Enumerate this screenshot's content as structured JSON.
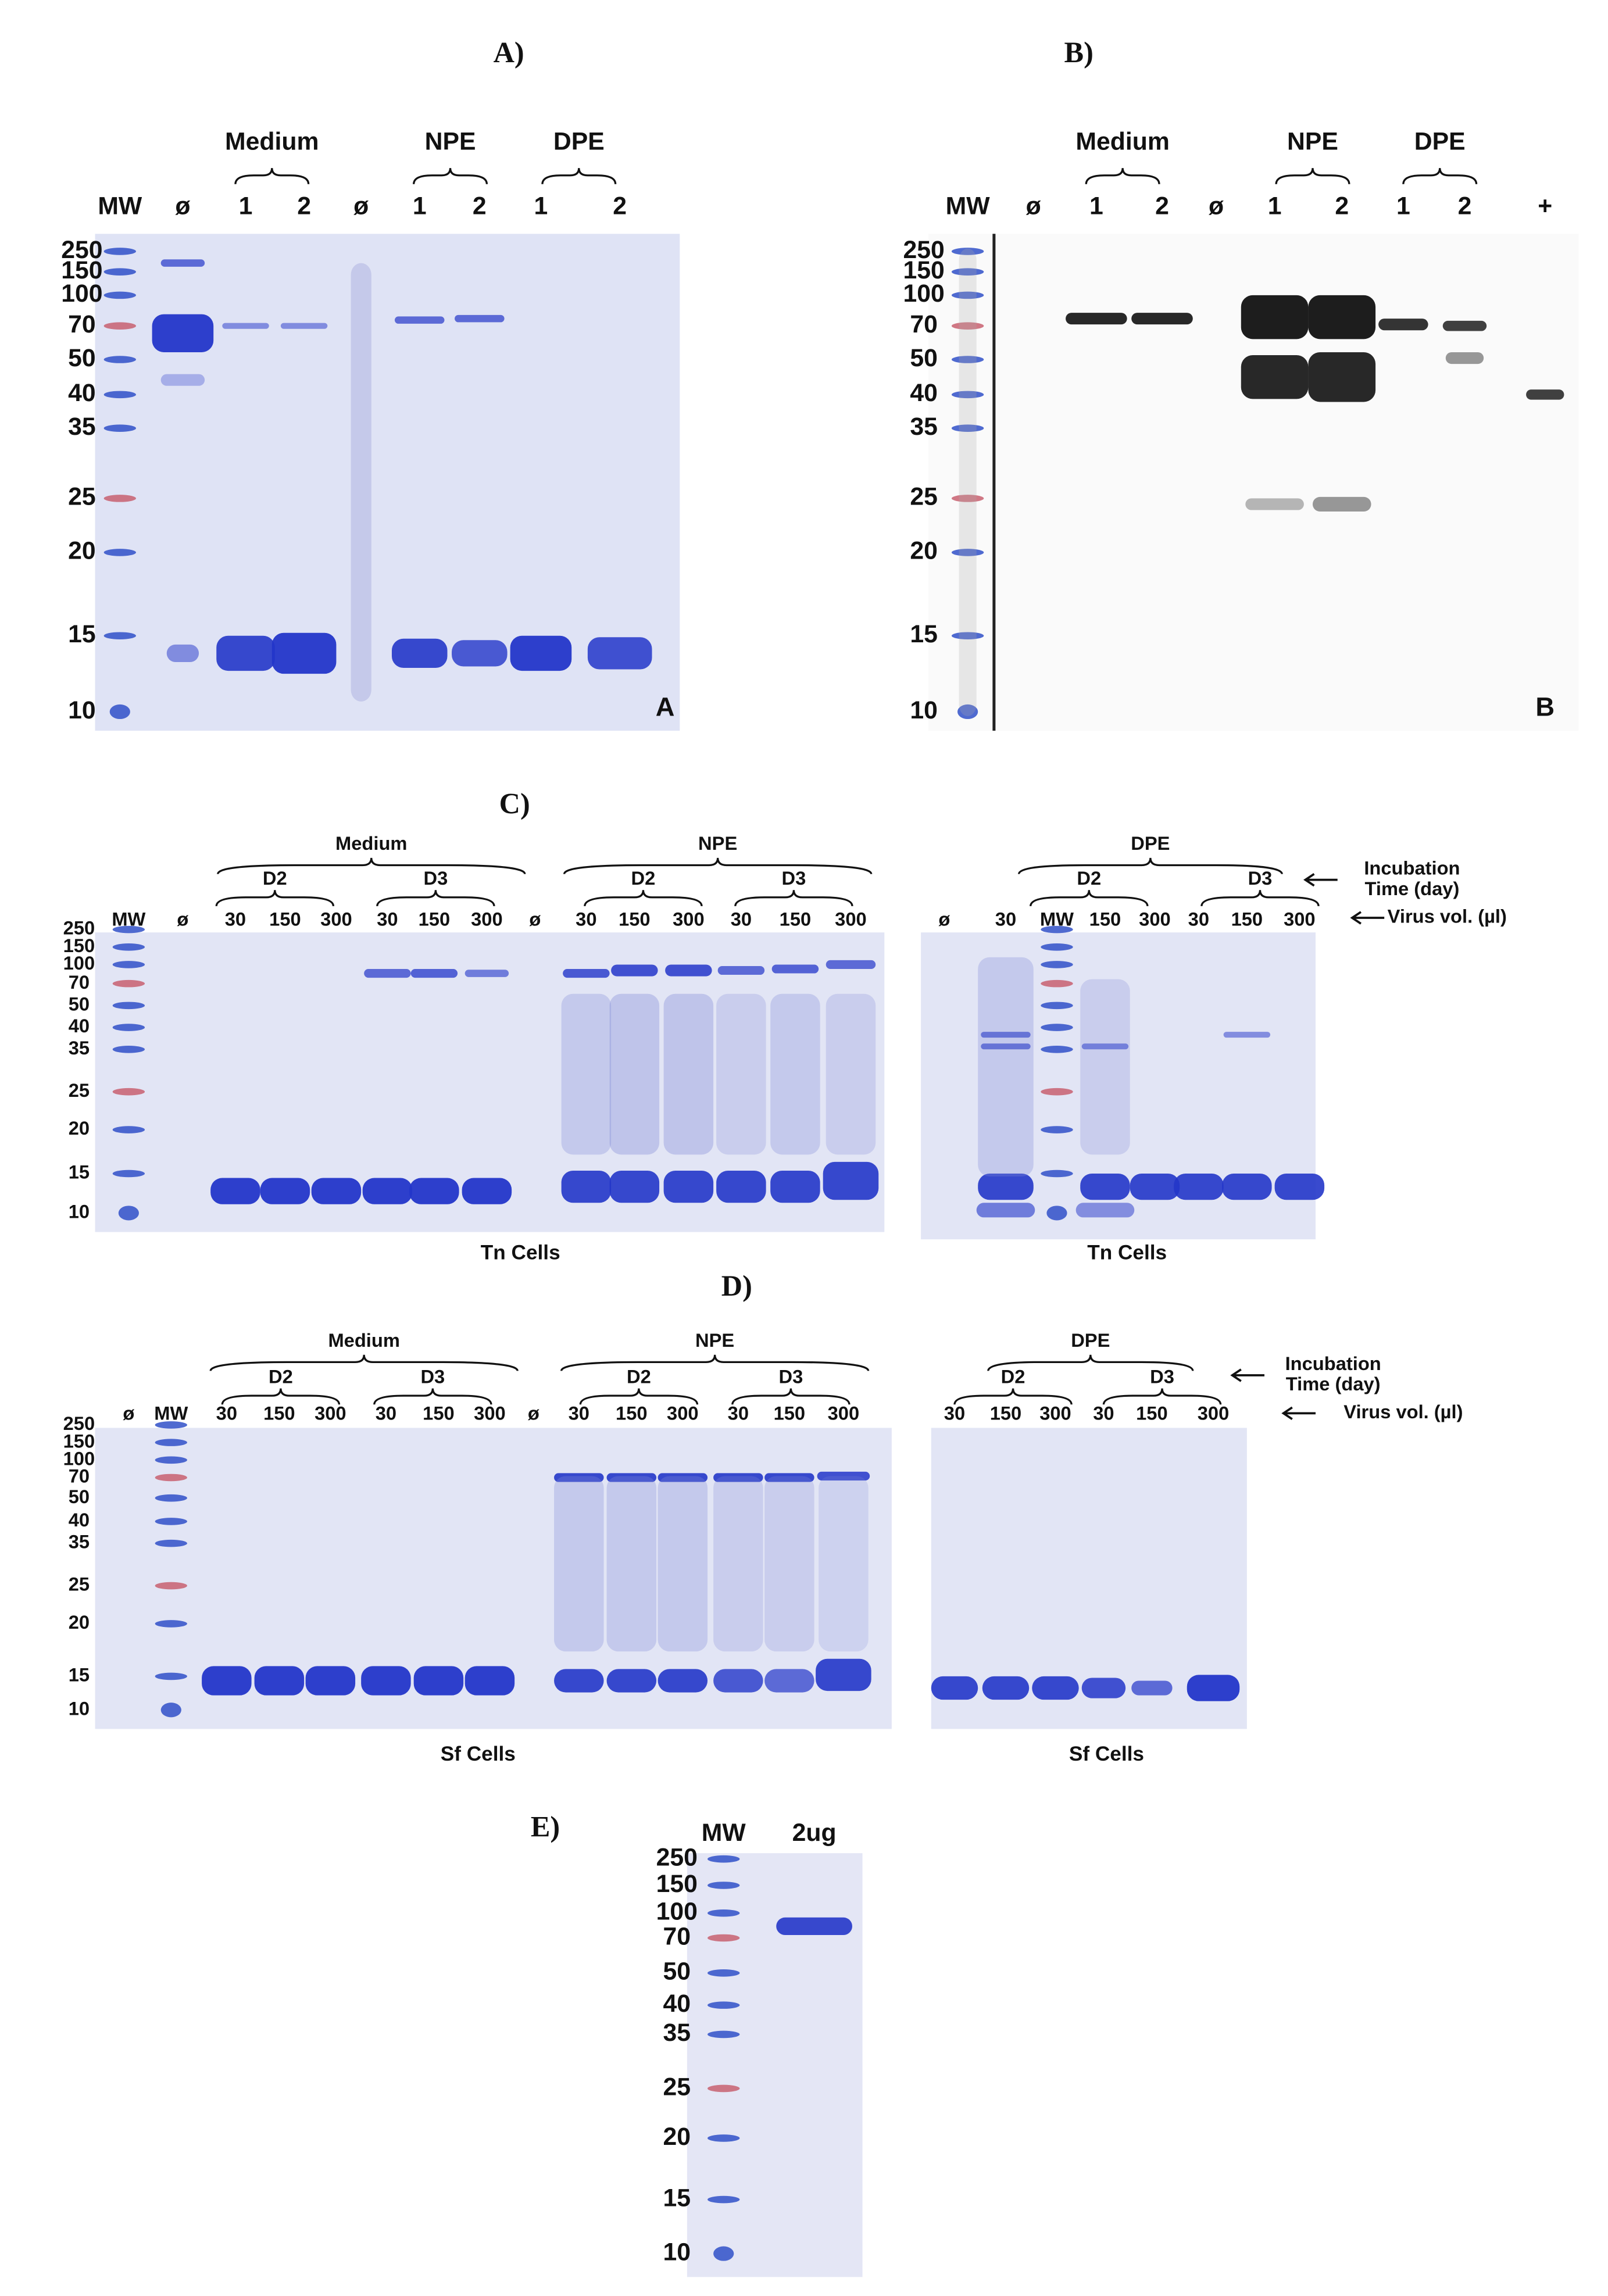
{
  "panels": [
    {
      "label": "A)",
      "gels": [
        {
          "groups": [
            "Medium",
            "NPE",
            "DPE"
          ],
          "lanes": [
            "MW",
            "ø",
            "1",
            "2",
            "ø",
            "1",
            "2",
            "1",
            "2"
          ],
          "markers": [
            "250",
            "150",
            "100",
            "70",
            "50",
            "40",
            "35",
            "25",
            "20",
            "15",
            "10"
          ],
          "corner": "A"
        }
      ]
    },
    {
      "label": "B)",
      "gels": [
        {
          "groups": [
            "Medium",
            "NPE",
            "DPE"
          ],
          "lanes": [
            "MW",
            "ø",
            "1",
            "2",
            "ø",
            "1",
            "2",
            "1",
            "2",
            "+"
          ],
          "markers": [
            "250",
            "150",
            "100",
            "70",
            "50",
            "40",
            "35",
            "25",
            "20",
            "15",
            "10"
          ],
          "corner": "B"
        }
      ]
    },
    {
      "label": "C)",
      "gels": [
        {
          "groups": [
            "Medium",
            "NPE"
          ],
          "subgroups": [
            "D2",
            "D3",
            "D2",
            "D3"
          ],
          "lanes": [
            "MW",
            "ø",
            "30",
            "150",
            "300",
            "30",
            "150",
            "300",
            "ø",
            "30",
            "150",
            "300",
            "30",
            "150",
            "300"
          ],
          "markers": [
            "250",
            "150",
            "100",
            "70",
            "50",
            "40",
            "35",
            "25",
            "20",
            "15",
            "10"
          ],
          "caption": "Tn Cells"
        },
        {
          "groups": [
            "DPE"
          ],
          "subgroups": [
            "D2",
            "D3"
          ],
          "lanes": [
            "ø",
            "30",
            "MW",
            "150",
            "300",
            "30",
            "150",
            "300"
          ],
          "caption": "Tn Cells"
        }
      ],
      "annotations": {
        "incubation": [
          "Incubation",
          "Time (day)"
        ],
        "virus_volume": "Virus vol. (µl)"
      }
    },
    {
      "label": "D)",
      "gels": [
        {
          "groups": [
            "Medium",
            "NPE"
          ],
          "subgroups": [
            "D2",
            "D3",
            "D2",
            "D3"
          ],
          "lanes": [
            "ø",
            "MW",
            "30",
            "150",
            "300",
            "30",
            "150",
            "300",
            "ø",
            "30",
            "150",
            "300",
            "30",
            "150",
            "300"
          ],
          "markers": [
            "250",
            "150",
            "100",
            "70",
            "50",
            "40",
            "35",
            "25",
            "20",
            "15",
            "10"
          ],
          "caption": "Sf Cells"
        },
        {
          "groups": [
            "DPE"
          ],
          "subgroups": [
            "D2",
            "D3"
          ],
          "lanes": [
            "30",
            "150",
            "300",
            "30",
            "150",
            "300"
          ],
          "caption": "Sf Cells"
        }
      ],
      "annotations": {
        "incubation": [
          "Incubation",
          "Time (day)"
        ],
        "virus_volume": "Virus vol. (µl)"
      }
    },
    {
      "label": "E)",
      "gels": [
        {
          "lanes": [
            "MW",
            "2ug"
          ],
          "markers": [
            "250",
            "150",
            "100",
            "70",
            "50",
            "40",
            "35",
            "25",
            "20",
            "15",
            "10"
          ]
        }
      ]
    }
  ]
}
